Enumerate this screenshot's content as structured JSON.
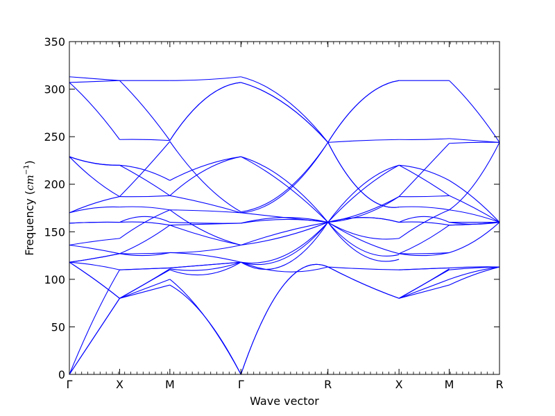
{
  "chart_data": {
    "type": "line",
    "xlabel": "Wave vector",
    "ylabel": {
      "prefix": "Frequency (",
      "unit": "cm",
      "exponent": "−1",
      "suffix": ")"
    },
    "ylim": [
      0,
      350
    ],
    "yticks": [
      0,
      50,
      100,
      150,
      200,
      250,
      300,
      350
    ],
    "high_symmetry_points": [
      {
        "label": "Γ",
        "pos": 0
      },
      {
        "label": "X",
        "pos": 0.5
      },
      {
        "label": "M",
        "pos": 1.0
      },
      {
        "label": "Γ",
        "pos": 1.707
      },
      {
        "label": "R",
        "pos": 2.573
      },
      {
        "label": "X",
        "pos": 3.28
      },
      {
        "label": "M",
        "pos": 3.78
      },
      {
        "label": "R",
        "pos": 4.28
      }
    ],
    "line_color": "#0000ff",
    "grid": false,
    "segments": [
      {
        "from": "Γ",
        "to": "X",
        "bands": [
          [
            0,
            40,
            80
          ],
          [
            0,
            40,
            80
          ],
          [
            0,
            60,
            110
          ],
          [
            118,
            100,
            80
          ],
          [
            118,
            100,
            80
          ],
          [
            118,
            115,
            110
          ],
          [
            118,
            122,
            127
          ],
          [
            118,
            122,
            127
          ],
          [
            136,
            132,
            127
          ],
          [
            136,
            140,
            143
          ],
          [
            159,
            160,
            160
          ],
          [
            159,
            160,
            160
          ],
          [
            170,
            175,
            176
          ],
          [
            170,
            180,
            187
          ],
          [
            229,
            205,
            187
          ],
          [
            229,
            222,
            220
          ],
          [
            229,
            222,
            220
          ],
          [
            307,
            280,
            247
          ],
          [
            307,
            308,
            309
          ],
          [
            313,
            311,
            309
          ]
        ]
      },
      {
        "from": "X",
        "to": "M",
        "bands": [
          [
            80,
            87,
            94
          ],
          [
            80,
            90,
            100
          ],
          [
            110,
            111,
            112
          ],
          [
            80,
            95,
            110
          ],
          [
            80,
            95,
            111
          ],
          [
            110,
            111,
            112
          ],
          [
            127,
            127,
            128
          ],
          [
            127,
            125,
            128
          ],
          [
            127,
            140,
            157
          ],
          [
            143,
            160,
            173
          ],
          [
            160,
            160,
            157
          ],
          [
            160,
            166,
            160
          ],
          [
            176,
            176,
            173
          ],
          [
            187,
            187,
            188
          ],
          [
            187,
            215,
            245
          ],
          [
            220,
            215,
            204
          ],
          [
            220,
            205,
            188
          ],
          [
            247,
            247,
            246
          ],
          [
            309,
            280,
            246
          ],
          [
            309,
            309,
            309
          ]
        ]
      },
      {
        "from": "M",
        "to": "Γ",
        "bands": [
          [
            94,
            60,
            0
          ],
          [
            100,
            60,
            0
          ],
          [
            112,
            115,
            118
          ],
          [
            110,
            105,
            118
          ],
          [
            111,
            110,
            118
          ],
          [
            112,
            115,
            118
          ],
          [
            128,
            130,
            136
          ],
          [
            128,
            125,
            118
          ],
          [
            157,
            145,
            136
          ],
          [
            173,
            150,
            136
          ],
          [
            157,
            158,
            159
          ],
          [
            160,
            159,
            159
          ],
          [
            173,
            172,
            170
          ],
          [
            188,
            180,
            170
          ],
          [
            245,
            200,
            171
          ],
          [
            204,
            220,
            229
          ],
          [
            188,
            215,
            229
          ],
          [
            246,
            290,
            307
          ],
          [
            246,
            290,
            307
          ],
          [
            309,
            310,
            313
          ]
        ]
      },
      {
        "from": "Γ",
        "to": "R",
        "bands": [
          [
            0,
            95,
            113
          ],
          [
            0,
            95,
            113
          ],
          [
            118,
            108,
            113
          ],
          [
            118,
            115,
            160
          ],
          [
            118,
            125,
            160
          ],
          [
            118,
            122,
            160
          ],
          [
            136,
            145,
            160
          ],
          [
            136,
            150,
            160
          ],
          [
            159,
            165,
            160
          ],
          [
            159,
            163,
            160
          ],
          [
            170,
            165,
            160
          ],
          [
            170,
            190,
            244
          ],
          [
            171,
            192,
            244
          ],
          [
            229,
            200,
            160
          ],
          [
            229,
            205,
            160
          ],
          [
            307,
            285,
            244
          ],
          [
            307,
            285,
            244
          ],
          [
            313,
            290,
            244
          ]
        ]
      },
      {
        "from": "R",
        "to": "X",
        "bands": [
          [
            113,
            95,
            80
          ],
          [
            113,
            95,
            80
          ],
          [
            113,
            111,
            110
          ],
          [
            160,
            130,
            126
          ],
          [
            160,
            125,
            121
          ],
          [
            160,
            140,
            127
          ],
          [
            160,
            145,
            143
          ],
          [
            160,
            170,
            187
          ],
          [
            160,
            168,
            187
          ],
          [
            160,
            165,
            160
          ],
          [
            160,
            165,
            160
          ],
          [
            160,
            200,
            220
          ],
          [
            160,
            195,
            220
          ],
          [
            244,
            190,
            176
          ],
          [
            244,
            190,
            176
          ],
          [
            244,
            246,
            247
          ],
          [
            244,
            290,
            309
          ],
          [
            244,
            290,
            309
          ]
        ]
      },
      {
        "from": "X",
        "to": "M",
        "bands": [
          [
            80,
            87,
            94
          ],
          [
            80,
            90,
            100
          ],
          [
            110,
            111,
            112
          ],
          [
            80,
            95,
            110
          ],
          [
            80,
            95,
            111
          ],
          [
            110,
            111,
            112
          ],
          [
            127,
            127,
            128
          ],
          [
            127,
            125,
            128
          ],
          [
            127,
            140,
            157
          ],
          [
            143,
            160,
            173
          ],
          [
            160,
            160,
            157
          ],
          [
            160,
            166,
            160
          ],
          [
            176,
            176,
            173
          ],
          [
            187,
            187,
            188
          ],
          [
            187,
            215,
            243
          ],
          [
            220,
            215,
            204
          ],
          [
            220,
            205,
            188
          ],
          [
            247,
            247,
            248
          ],
          [
            309,
            309,
            309
          ]
        ]
      },
      {
        "from": "M",
        "to": "R",
        "bands": [
          [
            94,
            105,
            113
          ],
          [
            100,
            108,
            113
          ],
          [
            112,
            113,
            113
          ],
          [
            110,
            112,
            113
          ],
          [
            128,
            140,
            160
          ],
          [
            157,
            158,
            160
          ],
          [
            173,
            168,
            160
          ],
          [
            188,
            175,
            160
          ],
          [
            204,
            185,
            160
          ],
          [
            157,
            158,
            160
          ],
          [
            160,
            160,
            160
          ],
          [
            243,
            244,
            244
          ],
          [
            248,
            246,
            244
          ],
          [
            309,
            280,
            244
          ],
          [
            173,
            200,
            244
          ],
          [
            160,
            158,
            160
          ]
        ]
      }
    ]
  }
}
